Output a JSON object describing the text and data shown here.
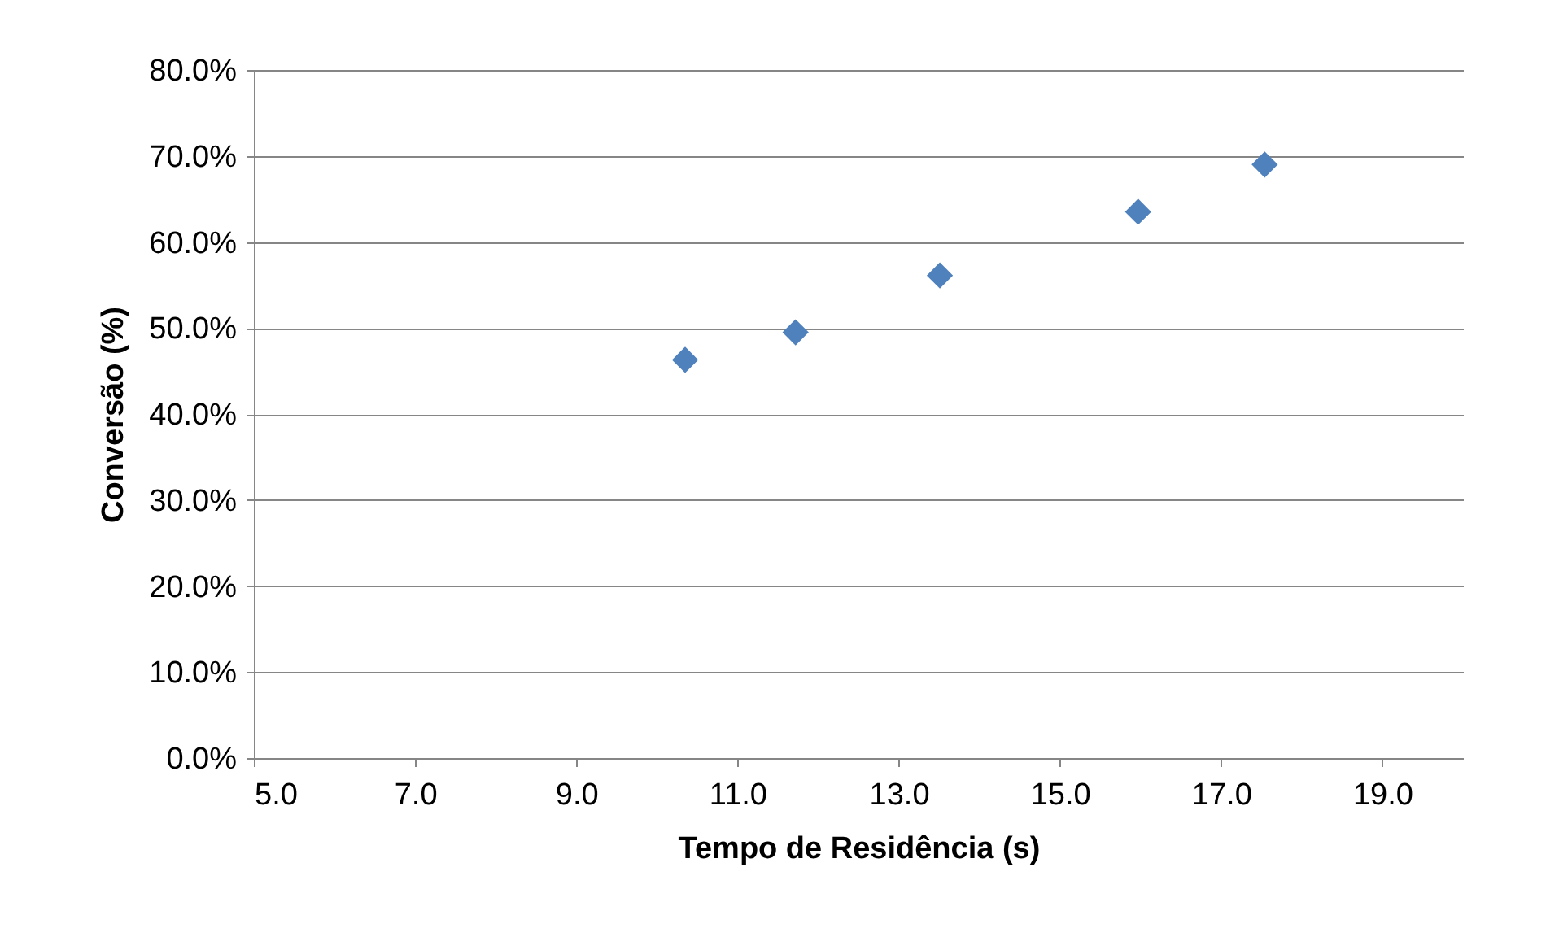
{
  "chart_data": {
    "type": "scatter",
    "xlabel": "Tempo de Residência (s)",
    "ylabel": "Conversão (%)",
    "x": [
      10.35,
      11.72,
      13.51,
      15.97,
      17.54
    ],
    "series": [
      {
        "color": "#4f81bd",
        "values": [
          46.3,
          49.5,
          56.1,
          63.5,
          69.0
        ]
      }
    ],
    "xlim": [
      5,
      20
    ],
    "xticks": [
      {
        "value": 5,
        "label": "5.0"
      },
      {
        "value": 7,
        "label": "7.0"
      },
      {
        "value": 9,
        "label": "9.0"
      },
      {
        "value": 11,
        "label": "11.0"
      },
      {
        "value": 13,
        "label": "13.0"
      },
      {
        "value": 15,
        "label": "15.0"
      },
      {
        "value": 17,
        "label": "17.0"
      },
      {
        "value": 19,
        "label": "19.0"
      }
    ],
    "ylim": [
      0,
      80
    ],
    "yticks": [
      {
        "value": 0,
        "label": "0.0%"
      },
      {
        "value": 10,
        "label": "10.0%"
      },
      {
        "value": 20,
        "label": "20.0%"
      },
      {
        "value": 30,
        "label": "30.0%"
      },
      {
        "value": 40,
        "label": "40.0%"
      },
      {
        "value": 50,
        "label": "50.0%"
      },
      {
        "value": 60,
        "label": "60.0%"
      },
      {
        "value": 70,
        "label": "70.0%"
      },
      {
        "value": 80,
        "label": "80.0%"
      }
    ],
    "grid": "y",
    "marker": "diamond"
  }
}
